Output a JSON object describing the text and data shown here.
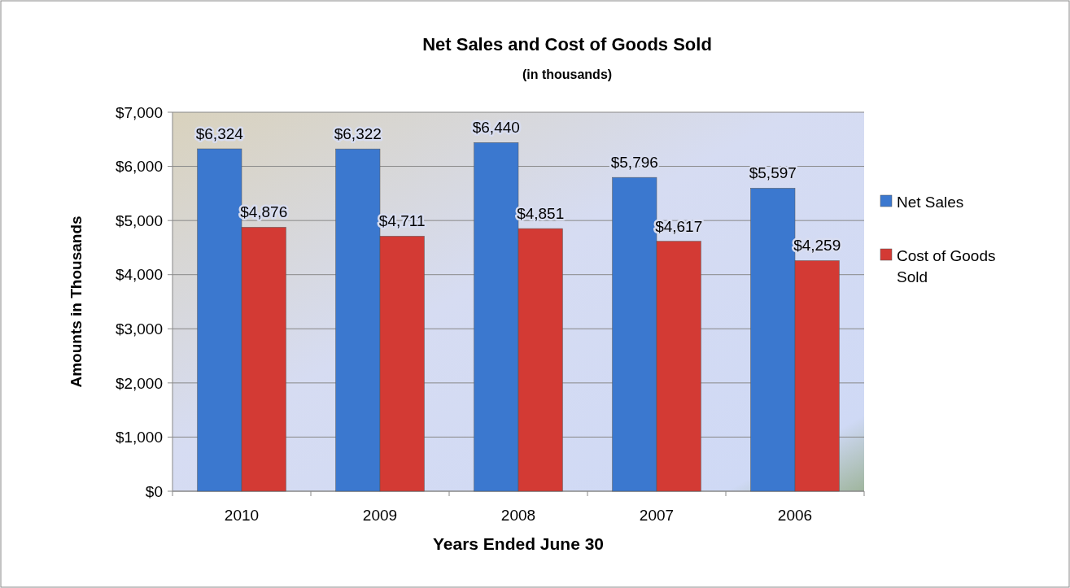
{
  "chart_data": {
    "type": "bar",
    "title": "Net Sales and Cost of Goods Sold",
    "subtitle": "(in thousands)",
    "xlabel": "Years Ended June 30",
    "ylabel": "Amounts in Thousands",
    "categories": [
      "2010",
      "2009",
      "2008",
      "2007",
      "2006"
    ],
    "series": [
      {
        "name": "Net Sales",
        "color": "#3b78cf",
        "values": [
          6324,
          6322,
          6440,
          5796,
          5597
        ],
        "value_labels": [
          "$6,324",
          "$6,322",
          "$6,440",
          "$5,796",
          "$5,597"
        ]
      },
      {
        "name": "Cost of Goods Sold",
        "color": "#d33a34",
        "values": [
          4876,
          4711,
          4851,
          4617,
          4259
        ],
        "value_labels": [
          "$4,876",
          "$4,711",
          "$4,851",
          "$4,617",
          "$4,259"
        ]
      }
    ],
    "ylim": [
      0,
      7000
    ],
    "yticks": [
      {
        "value": 0,
        "label": "$0"
      },
      {
        "value": 1000,
        "label": "$1,000"
      },
      {
        "value": 2000,
        "label": "$2,000"
      },
      {
        "value": 3000,
        "label": "$3,000"
      },
      {
        "value": 4000,
        "label": "$4,000"
      },
      {
        "value": 5000,
        "label": "$5,000"
      },
      {
        "value": 6000,
        "label": "$6,000"
      },
      {
        "value": 7000,
        "label": "$7,000"
      }
    ],
    "grid": "y",
    "legend": "right"
  }
}
